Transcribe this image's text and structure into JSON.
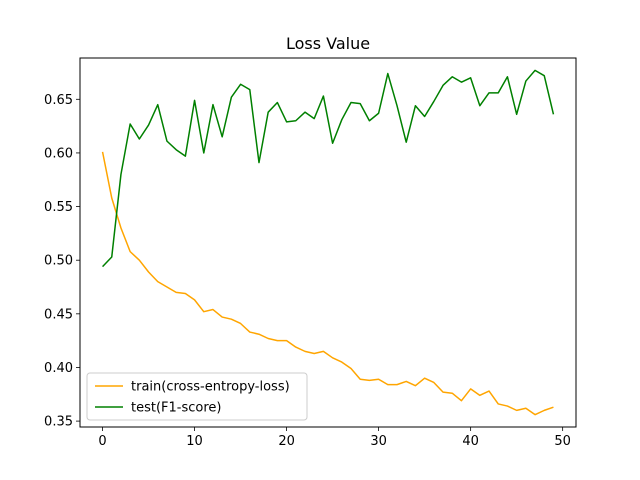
{
  "chart_data": {
    "type": "line",
    "title": "Loss Value",
    "xlabel": "",
    "ylabel": "",
    "xlim": [
      -2.45,
      51.45
    ],
    "ylim": [
      0.3445,
      0.6885
    ],
    "xticks": [
      0,
      10,
      20,
      30,
      40,
      50
    ],
    "yticks": [
      0.35,
      0.4,
      0.45,
      0.5,
      0.55,
      0.6,
      0.65
    ],
    "ytick_labels": [
      "0.35",
      "0.40",
      "0.45",
      "0.50",
      "0.55",
      "0.60",
      "0.65"
    ],
    "grid": false,
    "legend_position": "lower-left",
    "x": [
      0,
      1,
      2,
      3,
      4,
      5,
      6,
      7,
      8,
      9,
      10,
      11,
      12,
      13,
      14,
      15,
      16,
      17,
      18,
      19,
      20,
      21,
      22,
      23,
      24,
      25,
      26,
      27,
      28,
      29,
      30,
      31,
      32,
      33,
      34,
      35,
      36,
      37,
      38,
      39,
      40,
      41,
      42,
      43,
      44,
      45,
      46,
      47,
      48,
      49
    ],
    "series": [
      {
        "name": "train(cross-entropy-loss)",
        "color": "#ffa500",
        "values": [
          0.601,
          0.558,
          0.53,
          0.508,
          0.5,
          0.489,
          0.48,
          0.475,
          0.47,
          0.469,
          0.463,
          0.452,
          0.454,
          0.447,
          0.445,
          0.441,
          0.433,
          0.431,
          0.427,
          0.425,
          0.425,
          0.419,
          0.415,
          0.413,
          0.415,
          0.409,
          0.405,
          0.399,
          0.389,
          0.388,
          0.389,
          0.384,
          0.384,
          0.387,
          0.383,
          0.39,
          0.386,
          0.377,
          0.376,
          0.369,
          0.38,
          0.374,
          0.378,
          0.366,
          0.364,
          0.36,
          0.362,
          0.356,
          0.36,
          0.363
        ]
      },
      {
        "name": "test(F1-score)",
        "color": "#008000",
        "values": [
          0.494,
          0.503,
          0.58,
          0.627,
          0.613,
          0.626,
          0.645,
          0.611,
          0.603,
          0.597,
          0.649,
          0.6,
          0.645,
          0.615,
          0.652,
          0.664,
          0.659,
          0.591,
          0.638,
          0.647,
          0.629,
          0.63,
          0.638,
          0.632,
          0.653,
          0.609,
          0.631,
          0.647,
          0.646,
          0.63,
          0.637,
          0.674,
          0.644,
          0.61,
          0.644,
          0.634,
          0.648,
          0.663,
          0.671,
          0.666,
          0.67,
          0.644,
          0.656,
          0.656,
          0.671,
          0.636,
          0.667,
          0.677,
          0.672,
          0.636
        ]
      }
    ]
  }
}
